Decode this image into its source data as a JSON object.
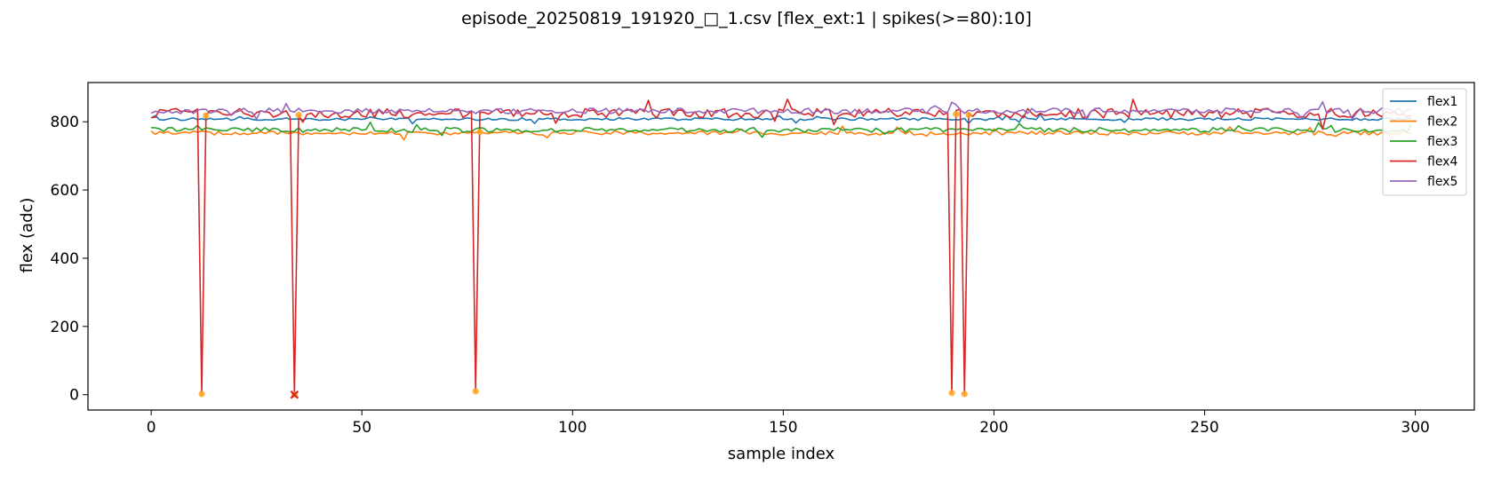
{
  "chart_data": {
    "type": "line",
    "title": "episode_20250819_191920_□_1.csv  [flex_ext:1 | spikes(>=80):10]",
    "xlabel": "sample index",
    "ylabel": "flex (adc)",
    "xlim": [
      -15,
      314
    ],
    "ylim": [
      -45,
      915
    ],
    "xticks": [
      0,
      50,
      100,
      150,
      200,
      250,
      300
    ],
    "yticks": [
      0,
      200,
      400,
      600,
      800
    ],
    "legend_position": "top-right",
    "grid": false,
    "n_samples": 300,
    "series": [
      {
        "name": "flex1",
        "color": "#1f77b4",
        "base": 808,
        "amp": 4
      },
      {
        "name": "flex2",
        "color": "#ff7f0e",
        "base": 767,
        "amp": 6
      },
      {
        "name": "flex3",
        "color": "#2ca02c",
        "base": 776,
        "amp": 7
      },
      {
        "name": "flex4",
        "color": "#d62728",
        "base": 825,
        "amp": 14,
        "dips": [
          {
            "x": 12,
            "y": 2
          },
          {
            "x": 34,
            "y": 0
          },
          {
            "x": 77,
            "y": 10
          },
          {
            "x": 190,
            "y": 5
          },
          {
            "x": 193,
            "y": 2
          }
        ]
      },
      {
        "name": "flex5",
        "color": "#9467bd",
        "base": 832,
        "amp": 8
      }
    ],
    "spike_markers": [
      {
        "x": 12,
        "y": 2
      },
      {
        "x": 34,
        "y": 0
      },
      {
        "x": 77,
        "y": 10
      },
      {
        "x": 190,
        "y": 5
      },
      {
        "x": 193,
        "y": 2
      },
      {
        "x": 13,
        "y": 818
      },
      {
        "x": 35,
        "y": 820
      },
      {
        "x": 78,
        "y": 770
      },
      {
        "x": 191,
        "y": 822
      },
      {
        "x": 194,
        "y": 820
      }
    ],
    "marker_color": "#ffa520",
    "cross_marker": {
      "x": 34,
      "y": 0,
      "color": "#d62728"
    }
  }
}
